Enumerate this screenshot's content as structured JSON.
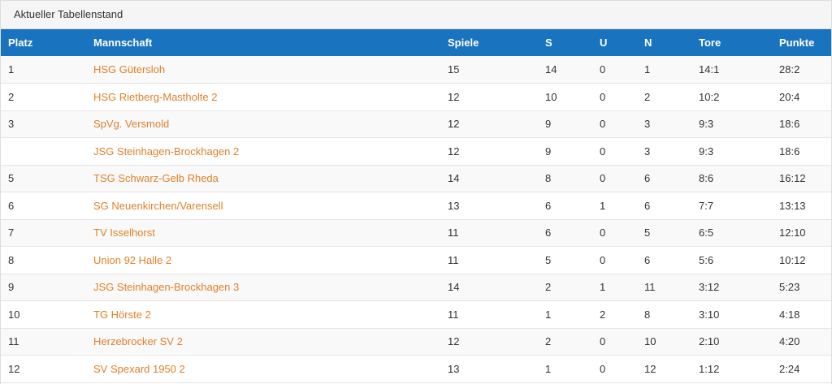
{
  "panel": {
    "title": "Aktueller Tabellenstand"
  },
  "colors": {
    "header_bg": "#1a73be",
    "team_link": "#e0812a",
    "row_alt": "#f9f9f9"
  },
  "table": {
    "columns": [
      "Platz",
      "Mannschaft",
      "Spiele",
      "S",
      "U",
      "N",
      "Tore",
      "Punkte"
    ],
    "rows": [
      {
        "platz": "1",
        "team": "HSG Gütersloh",
        "spiele": "15",
        "s": "14",
        "u": "0",
        "n": "1",
        "tore": "14:1",
        "punkte": "28:2"
      },
      {
        "platz": "2",
        "team": "HSG Rietberg-Mastholte 2",
        "spiele": "12",
        "s": "10",
        "u": "0",
        "n": "2",
        "tore": "10:2",
        "punkte": "20:4"
      },
      {
        "platz": "3",
        "team": "SpVg. Versmold",
        "spiele": "12",
        "s": "9",
        "u": "0",
        "n": "3",
        "tore": "9:3",
        "punkte": "18:6"
      },
      {
        "platz": "",
        "team": "JSG Steinhagen-Brockhagen 2",
        "spiele": "12",
        "s": "9",
        "u": "0",
        "n": "3",
        "tore": "9:3",
        "punkte": "18:6"
      },
      {
        "platz": "5",
        "team": "TSG Schwarz-Gelb Rheda",
        "spiele": "14",
        "s": "8",
        "u": "0",
        "n": "6",
        "tore": "8:6",
        "punkte": "16:12"
      },
      {
        "platz": "6",
        "team": "SG Neuenkirchen/Varensell",
        "spiele": "13",
        "s": "6",
        "u": "1",
        "n": "6",
        "tore": "7:7",
        "punkte": "13:13"
      },
      {
        "platz": "7",
        "team": "TV Isselhorst",
        "spiele": "11",
        "s": "6",
        "u": "0",
        "n": "5",
        "tore": "6:5",
        "punkte": "12:10"
      },
      {
        "platz": "8",
        "team": "Union 92 Halle 2",
        "spiele": "11",
        "s": "5",
        "u": "0",
        "n": "6",
        "tore": "5:6",
        "punkte": "10:12"
      },
      {
        "platz": "9",
        "team": "JSG Steinhagen-Brockhagen 3",
        "spiele": "14",
        "s": "2",
        "u": "1",
        "n": "11",
        "tore": "3:12",
        "punkte": "5:23"
      },
      {
        "platz": "10",
        "team": "TG Hörste 2",
        "spiele": "11",
        "s": "1",
        "u": "2",
        "n": "8",
        "tore": "3:10",
        "punkte": "4:18"
      },
      {
        "platz": "11",
        "team": "Herzebrocker SV 2",
        "spiele": "12",
        "s": "2",
        "u": "0",
        "n": "10",
        "tore": "2:10",
        "punkte": "4:20"
      },
      {
        "platz": "12",
        "team": "SV Spexard 1950 2",
        "spiele": "13",
        "s": "1",
        "u": "0",
        "n": "12",
        "tore": "1:12",
        "punkte": "2:24"
      }
    ]
  }
}
